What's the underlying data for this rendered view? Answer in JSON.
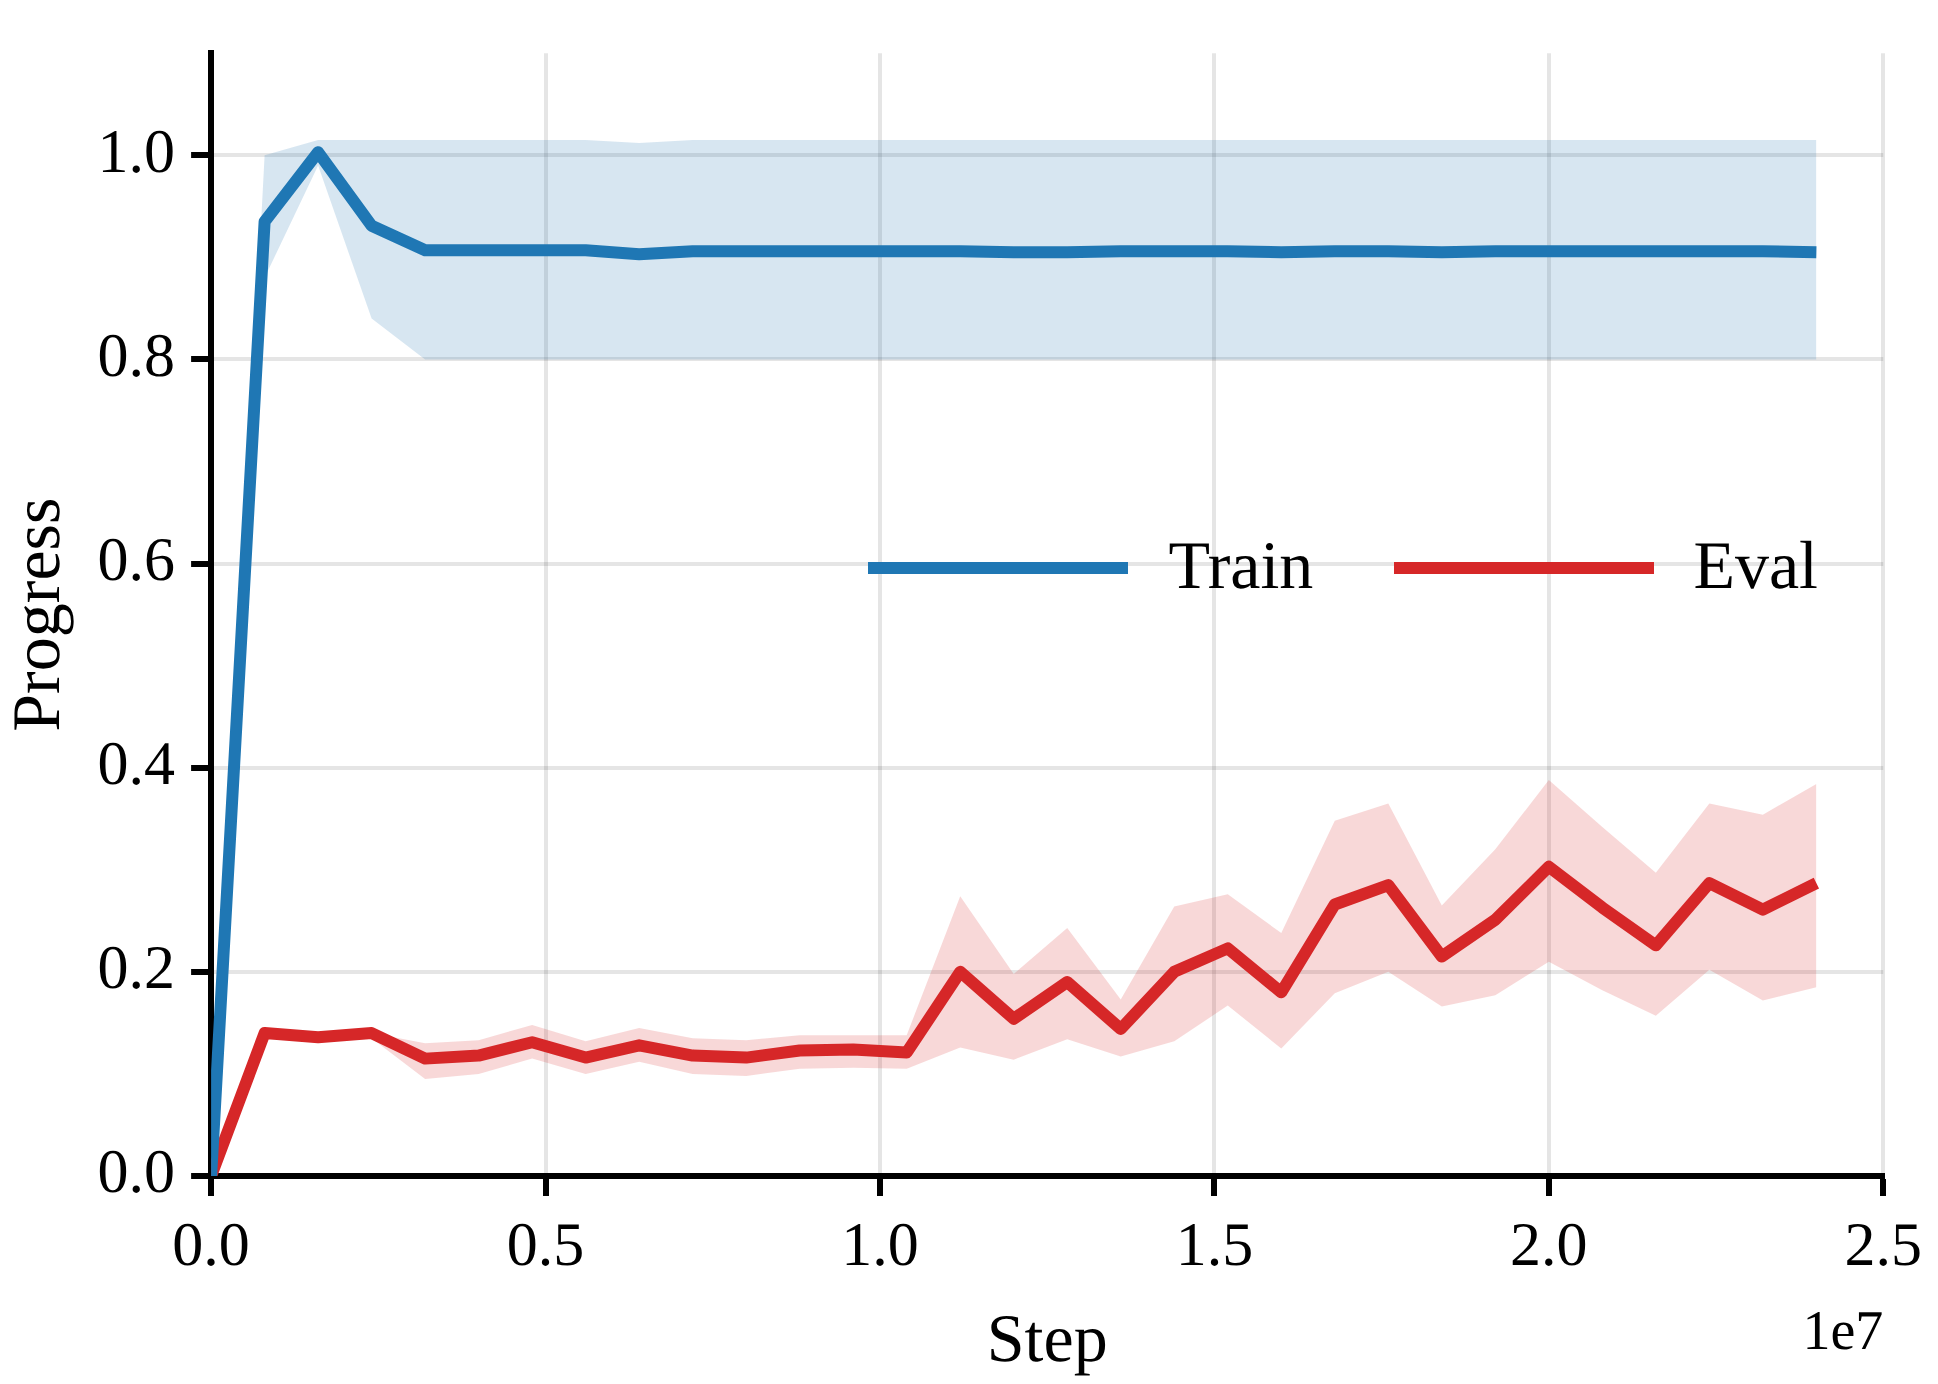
{
  "chart_data": {
    "type": "line",
    "xlabel": "Step",
    "ylabel": "Progress",
    "annotations": [
      "1e7"
    ],
    "x": [
      0,
      0.08,
      0.16,
      0.24,
      0.32,
      0.4,
      0.48,
      0.56,
      0.64,
      0.72,
      0.8,
      0.88,
      0.96,
      1.04,
      1.12,
      1.2,
      1.28,
      1.36,
      1.44,
      1.52,
      1.6,
      1.68,
      1.76,
      1.84,
      1.92,
      2.0,
      2.08,
      2.16,
      2.24,
      2.32,
      2.4
    ],
    "series": [
      {
        "name": "Train",
        "color": "#1f77b4",
        "values": [
          0,
          0.935,
          1.003,
          0.931,
          0.907,
          0.907,
          0.907,
          0.907,
          0.903,
          0.906,
          0.906,
          0.906,
          0.906,
          0.906,
          0.906,
          0.905,
          0.905,
          0.906,
          0.906,
          0.906,
          0.905,
          0.906,
          0.906,
          0.905,
          0.906,
          0.906,
          0.906,
          0.906,
          0.906,
          0.906,
          0.905
        ],
        "lower": [
          0,
          0.88,
          0.99,
          0.84,
          0.8,
          0.8,
          0.8,
          0.8,
          0.8,
          0.8,
          0.8,
          0.8,
          0.8,
          0.8,
          0.8,
          0.8,
          0.8,
          0.8,
          0.8,
          0.8,
          0.8,
          0.8,
          0.8,
          0.8,
          0.8,
          0.8,
          0.8,
          0.8,
          0.8,
          0.8,
          0.8
        ],
        "upper": [
          0,
          1.0,
          1.015,
          1.015,
          1.015,
          1.015,
          1.015,
          1.015,
          1.012,
          1.015,
          1.015,
          1.015,
          1.015,
          1.015,
          1.015,
          1.015,
          1.015,
          1.015,
          1.015,
          1.015,
          1.015,
          1.015,
          1.015,
          1.015,
          1.015,
          1.015,
          1.015,
          1.015,
          1.015,
          1.015,
          1.015
        ]
      },
      {
        "name": "Eval",
        "color": "#d62728",
        "values": [
          0,
          0.14,
          0.136,
          0.14,
          0.115,
          0.118,
          0.131,
          0.116,
          0.128,
          0.118,
          0.116,
          0.123,
          0.124,
          0.121,
          0.2,
          0.154,
          0.19,
          0.144,
          0.2,
          0.223,
          0.18,
          0.266,
          0.285,
          0.215,
          0.251,
          0.303,
          0.263,
          0.226,
          0.287,
          0.261,
          0.287
        ],
        "lower": [
          0,
          0.14,
          0.136,
          0.135,
          0.095,
          0.1,
          0.115,
          0.1,
          0.112,
          0.1,
          0.098,
          0.105,
          0.106,
          0.105,
          0.126,
          0.114,
          0.134,
          0.117,
          0.132,
          0.167,
          0.125,
          0.179,
          0.2,
          0.166,
          0.177,
          0.21,
          0.182,
          0.157,
          0.202,
          0.172,
          0.185
        ],
        "upper": [
          0,
          0.14,
          0.136,
          0.14,
          0.13,
          0.133,
          0.148,
          0.132,
          0.145,
          0.135,
          0.133,
          0.138,
          0.138,
          0.138,
          0.274,
          0.198,
          0.243,
          0.173,
          0.264,
          0.276,
          0.238,
          0.348,
          0.365,
          0.265,
          0.32,
          0.388,
          0.342,
          0.297,
          0.365,
          0.354,
          0.384
        ]
      }
    ],
    "xlim": [
      0,
      2.5
    ],
    "xticks": [
      {
        "value": 0,
        "label": "0.0"
      },
      0.5,
      {
        "value": 1,
        "label": "1.0"
      },
      1.5,
      {
        "value": 2,
        "label": "2.0"
      },
      2.5
    ],
    "ylim": [
      0,
      1.1
    ],
    "yticks": [
      {
        "value": 0,
        "label": "0.0"
      },
      0.2,
      0.4,
      0.6,
      0.8,
      {
        "value": 1,
        "label": "1.0"
      }
    ],
    "grid": true,
    "legend": "right",
    "marker": "none",
    "line_style": "solid"
  }
}
